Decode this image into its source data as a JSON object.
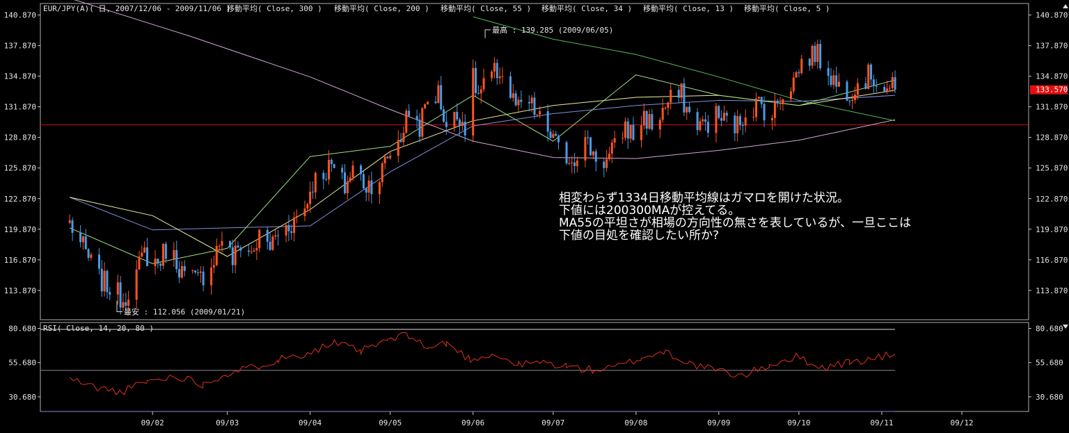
{
  "chart_data": [
    {
      "type": "candlestick",
      "title": "EUR/JPY(A)( 日, 2007/12/06 - 2009/11/06 )",
      "indicator_labels": [
        "移動平均( Close, 300 )",
        "移動平均( Close, 200 )",
        "移動平均( Close, 55 )",
        "移動平均( Close, 34 )",
        "移動平均( Close, 13 )",
        "移動平均( Close, 5 )"
      ],
      "ylim": [
        111.0,
        142.0
      ],
      "yticks": [
        "140.870",
        "137.870",
        "134.870",
        "131.870",
        "128.870",
        "125.870",
        "122.870",
        "119.870",
        "116.870",
        "113.870"
      ],
      "xticks": [
        "09/02",
        "09/03",
        "09/04",
        "09/05",
        "09/06",
        "09/07",
        "09/08",
        "09/09",
        "09/10",
        "09/11",
        "09/12"
      ],
      "last_price": "133.570",
      "horizontal_line": 130.1,
      "high_label": "最高 : 139.285 (2009/06/05)",
      "low_label": "最安 : 112.056 (2009/01/21)",
      "annotation": [
        "相変わらず1334日移動平均線はガマロを開けた状況。",
        "下値には200300MAが控えてる。",
        "MA55の平坦さが相場の方向性の無さを表しているが、一旦ここは",
        "下値の目処を確認したい所か?"
      ],
      "close_path": [
        [
          "2009-01-01",
          120.5
        ],
        [
          "2009-01-06",
          118.0
        ],
        [
          "2009-01-12",
          115.0
        ],
        [
          "2009-01-16",
          114.2
        ],
        [
          "2009-01-21",
          113.0
        ],
        [
          "2009-01-26",
          115.5
        ],
        [
          "2009-01-29",
          117.5
        ],
        [
          "2009-02-03",
          116.5
        ],
        [
          "2009-02-06",
          118.0
        ],
        [
          "2009-02-10",
          116.8
        ],
        [
          "2009-02-13",
          115.2
        ],
        [
          "2009-02-18",
          114.8
        ],
        [
          "2009-02-23",
          116.5
        ],
        [
          "2009-02-27",
          119.2
        ],
        [
          "2009-03-03",
          116.8
        ],
        [
          "2009-03-06",
          118.5
        ],
        [
          "2009-03-10",
          117.5
        ],
        [
          "2009-03-13",
          119.0
        ],
        [
          "2009-03-17",
          118.2
        ],
        [
          "2009-03-20",
          119.5
        ],
        [
          "2009-03-25",
          120.5
        ],
        [
          "2009-03-30",
          122.0
        ],
        [
          "2009-04-02",
          124.5
        ],
        [
          "2009-04-06",
          125.5
        ],
        [
          "2009-04-09",
          126.0
        ],
        [
          "2009-04-14",
          124.0
        ],
        [
          "2009-04-17",
          125.8
        ],
        [
          "2009-04-22",
          124.2
        ],
        [
          "2009-04-27",
          125.0
        ],
        [
          "2009-04-30",
          127.0
        ],
        [
          "2009-05-05",
          129.0
        ],
        [
          "2009-05-08",
          131.5
        ],
        [
          "2009-05-12",
          130.0
        ],
        [
          "2009-05-15",
          132.5
        ],
        [
          "2009-05-19",
          133.2
        ],
        [
          "2009-05-22",
          130.0
        ],
        [
          "2009-05-27",
          131.2
        ],
        [
          "2009-05-29",
          130.0
        ],
        [
          "2009-06-01",
          134.5
        ],
        [
          "2009-06-03",
          133.0
        ],
        [
          "2009-06-08",
          134.8
        ],
        [
          "2009-06-11",
          135.5
        ],
        [
          "2009-06-15",
          133.0
        ],
        [
          "2009-06-18",
          131.5
        ],
        [
          "2009-06-22",
          132.2
        ],
        [
          "2009-06-26",
          130.5
        ],
        [
          "2009-06-30",
          129.2
        ],
        [
          "2009-07-03",
          127.5
        ],
        [
          "2009-07-08",
          126.8
        ],
        [
          "2009-07-13",
          128.5
        ],
        [
          "2009-07-17",
          127.0
        ],
        [
          "2009-07-21",
          126.5
        ],
        [
          "2009-07-24",
          127.8
        ],
        [
          "2009-07-28",
          130.0
        ],
        [
          "2009-07-31",
          129.0
        ],
        [
          "2009-08-04",
          131.0
        ],
        [
          "2009-08-07",
          130.0
        ],
        [
          "2009-08-11",
          131.5
        ],
        [
          "2009-08-14",
          132.5
        ],
        [
          "2009-08-18",
          133.0
        ],
        [
          "2009-08-21",
          131.0
        ],
        [
          "2009-08-26",
          130.0
        ],
        [
          "2009-08-31",
          131.0
        ],
        [
          "2009-09-03",
          130.5
        ],
        [
          "2009-09-08",
          130.0
        ],
        [
          "2009-09-11",
          131.5
        ],
        [
          "2009-09-16",
          132.2
        ],
        [
          "2009-09-21",
          131.0
        ],
        [
          "2009-09-24",
          133.0
        ],
        [
          "2009-09-29",
          134.5
        ],
        [
          "2009-10-02",
          136.2
        ],
        [
          "2009-10-07",
          137.2
        ],
        [
          "2009-10-12",
          135.5
        ],
        [
          "2009-10-15",
          134.0
        ],
        [
          "2009-10-20",
          133.5
        ],
        [
          "2009-10-23",
          134.2
        ],
        [
          "2009-10-28",
          135.0
        ],
        [
          "2009-11-02",
          133.8
        ],
        [
          "2009-11-06",
          133.57
        ]
      ],
      "moving_averages": [
        {
          "period": 300,
          "color": "#d8a8d8",
          "points": [
            [
              "2008-12-20",
              143.5
            ],
            [
              "2009-02-15",
              138.8
            ],
            [
              "2009-04-01",
              134.8
            ],
            [
              "2009-05-01",
              131.6
            ],
            [
              "2009-06-01",
              128.5
            ],
            [
              "2009-07-01",
              126.9
            ],
            [
              "2009-08-01",
              126.8
            ],
            [
              "2009-09-01",
              127.6
            ],
            [
              "2009-10-01",
              128.6
            ],
            [
              "2009-11-06",
              130.6
            ]
          ]
        },
        {
          "period": 200,
          "color": "#58b858",
          "points": [
            [
              "2009-06-01",
              140.7
            ],
            [
              "2009-07-01",
              138.5
            ],
            [
              "2009-08-01",
              137.0
            ],
            [
              "2009-09-01",
              134.8
            ],
            [
              "2009-10-01",
              132.5
            ],
            [
              "2009-11-06",
              130.5
            ]
          ]
        },
        {
          "period": 55,
          "color": "#8090e0",
          "points": [
            [
              "2009-01-01",
              123.0
            ],
            [
              "2009-02-01",
              119.8
            ],
            [
              "2009-03-01",
              120.0
            ],
            [
              "2009-04-01",
              120.2
            ],
            [
              "2009-05-01",
              125.5
            ],
            [
              "2009-06-01",
              130.0
            ],
            [
              "2009-07-01",
              131.2
            ],
            [
              "2009-08-01",
              132.0
            ],
            [
              "2009-09-01",
              132.5
            ],
            [
              "2009-10-01",
              132.4
            ],
            [
              "2009-11-06",
              133.0
            ]
          ]
        },
        {
          "period": 34,
          "color": "#f0f0a0",
          "points": [
            [
              "2009-01-01",
              123.0
            ],
            [
              "2009-02-01",
              121.2
            ],
            [
              "2009-03-01",
              117.2
            ],
            [
              "2009-04-01",
              121.8
            ],
            [
              "2009-05-01",
              127.5
            ],
            [
              "2009-06-01",
              130.5
            ],
            [
              "2009-07-01",
              132.0
            ],
            [
              "2009-08-01",
              132.8
            ],
            [
              "2009-09-01",
              133.0
            ],
            [
              "2009-10-01",
              132.0
            ],
            [
              "2009-11-06",
              133.5
            ]
          ]
        },
        {
          "period": 13,
          "color": "#a0e080",
          "points": [
            [
              "2009-01-01",
              120.0
            ],
            [
              "2009-02-01",
              116.5
            ],
            [
              "2009-03-01",
              118.0
            ],
            [
              "2009-04-01",
              127.0
            ],
            [
              "2009-05-01",
              128.0
            ],
            [
              "2009-06-01",
              133.0
            ],
            [
              "2009-07-01",
              128.5
            ],
            [
              "2009-08-01",
              135.0
            ],
            [
              "2009-09-01",
              133.0
            ],
            [
              "2009-10-01",
              132.0
            ],
            [
              "2009-11-06",
              134.5
            ]
          ]
        }
      ]
    },
    {
      "type": "line",
      "title": "RSI( Close, 14, 20, 80 )",
      "ylim": [
        20.0,
        85.0
      ],
      "yticks": [
        "80.680",
        "55.680",
        "30.680"
      ],
      "levels": [
        80,
        50,
        20
      ],
      "series": [
        {
          "color": "#e03020",
          "values": [
            [
              "2009-01-01",
              44
            ],
            [
              "2009-01-10",
              38
            ],
            [
              "2009-01-20",
              34
            ],
            [
              "2009-01-30",
              42
            ],
            [
              "2009-02-10",
              46
            ],
            [
              "2009-02-20",
              40
            ],
            [
              "2009-03-01",
              48
            ],
            [
              "2009-03-10",
              52
            ],
            [
              "2009-03-20",
              58
            ],
            [
              "2009-03-31",
              63
            ],
            [
              "2009-04-10",
              70
            ],
            [
              "2009-04-20",
              64
            ],
            [
              "2009-04-30",
              72
            ],
            [
              "2009-05-08",
              76
            ],
            [
              "2009-05-15",
              66
            ],
            [
              "2009-05-22",
              70
            ],
            [
              "2009-05-31",
              58
            ],
            [
              "2009-06-08",
              62
            ],
            [
              "2009-06-18",
              54
            ],
            [
              "2009-06-26",
              56
            ],
            [
              "2009-07-06",
              53
            ],
            [
              "2009-07-16",
              50
            ],
            [
              "2009-07-24",
              52
            ],
            [
              "2009-08-03",
              59
            ],
            [
              "2009-08-12",
              64
            ],
            [
              "2009-08-21",
              55
            ],
            [
              "2009-08-31",
              50
            ],
            [
              "2009-09-10",
              46
            ],
            [
              "2009-09-20",
              54
            ],
            [
              "2009-09-30",
              60
            ],
            [
              "2009-10-10",
              52
            ],
            [
              "2009-10-20",
              56
            ],
            [
              "2009-10-28",
              58
            ],
            [
              "2009-11-06",
              62
            ]
          ]
        }
      ]
    }
  ]
}
